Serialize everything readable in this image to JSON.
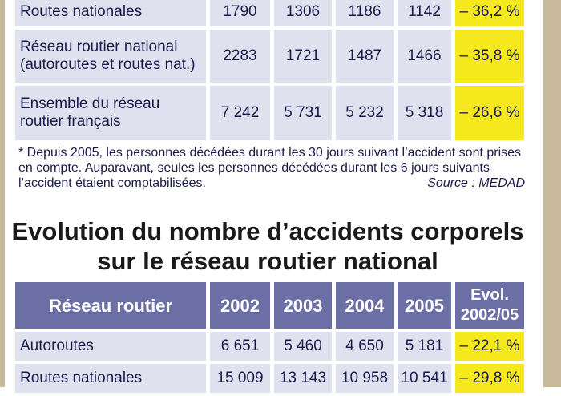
{
  "table1": {
    "rows": [
      {
        "label": "Routes nationales",
        "values": [
          "1790",
          "1306",
          "1186",
          "1142"
        ],
        "evolution": "– 36,2 %"
      },
      {
        "label": "Réseau routier national (autoroutes et routes nat.)",
        "values": [
          "2283",
          "1721",
          "1487",
          "1466"
        ],
        "evolution": "– 35,8 %"
      },
      {
        "label": "Ensemble du réseau routier français",
        "values": [
          "7 242",
          "5 731",
          "5 232",
          "5 318"
        ],
        "evolution": "– 26,6 %"
      }
    ]
  },
  "note": {
    "text": "* Depuis 2005, les personnes décédées durant les 30 jours suivant l’accident sont prises en compte. Auparavant, seules les personnes décédées durant les 6 jours suivants l’accident étaient comptabilisées.",
    "source": "Source : MEDAD"
  },
  "title2": "Evolution du nombre d’accidents corporels sur le réseau routier national",
  "table2": {
    "headers": [
      "Réseau routier",
      "2002",
      "2003",
      "2004",
      "2005",
      "Evol. 2002/05"
    ],
    "rows": [
      {
        "label": "Autoroutes",
        "values": [
          "6 651",
          "5 460",
          "4 650",
          "5 181"
        ],
        "evolution": "– 22,1 %"
      },
      {
        "label": "Routes nationales",
        "values": [
          "15 009",
          "13 143",
          "10 958",
          "10 541"
        ],
        "evolution": "– 29,8 %"
      }
    ]
  },
  "colors": {
    "header": "#6c6fa6",
    "cell": "#dfe1ef",
    "highlight": "#f5e91e",
    "frame": "#c8b99a"
  }
}
